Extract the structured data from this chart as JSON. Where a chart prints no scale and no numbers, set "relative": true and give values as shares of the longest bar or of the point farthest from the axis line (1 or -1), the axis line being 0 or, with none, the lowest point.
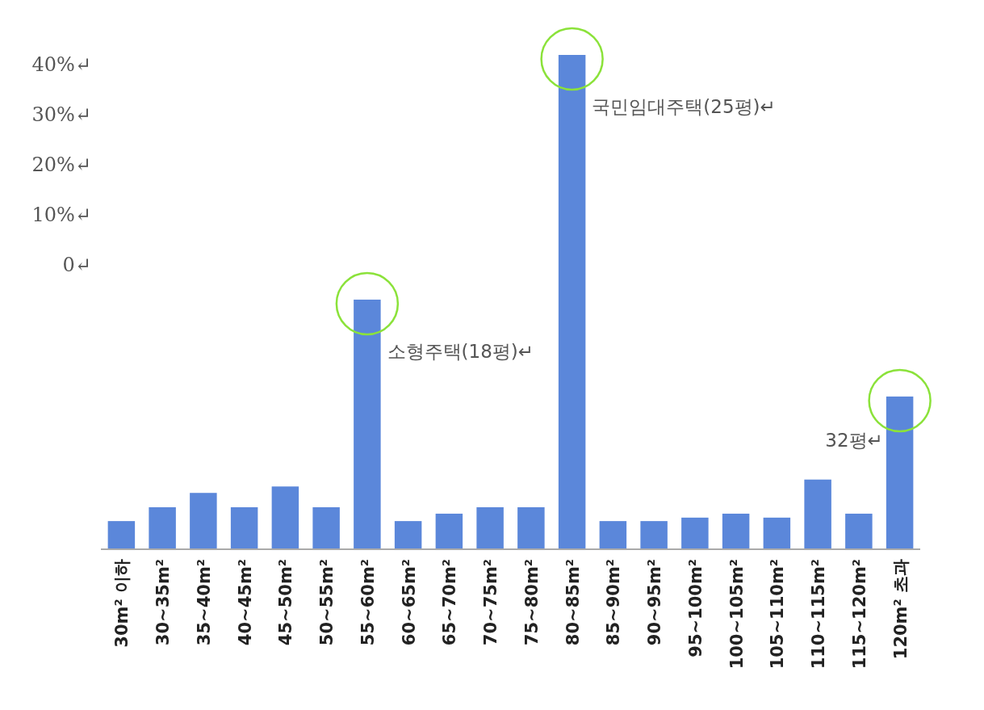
{
  "chart_data": {
    "type": "bar",
    "relative": true,
    "categories": [
      "30m² 이하",
      "30~35m²",
      "35~40m²",
      "40~45m²",
      "45~50m²",
      "50~55m²",
      "55~60m²",
      "60~65m²",
      "65~70m²",
      "70~75m²",
      "75~80m²",
      "80~85m²",
      "85~90m²",
      "90~95m²",
      "95~100m²",
      "100~105m²",
      "105~110m²",
      "110~115m²",
      "115~120m²",
      "120m² 초과"
    ],
    "values": [
      0.057,
      0.085,
      0.114,
      0.085,
      0.127,
      0.085,
      0.505,
      0.057,
      0.072,
      0.085,
      0.085,
      1,
      0.057,
      0.057,
      0.064,
      0.072,
      0.064,
      0.141,
      0.072,
      0.309
    ],
    "color": "#5b87da",
    "annotations": [
      "40%↵",
      "30%↵",
      "20%↵",
      "10%↵",
      "0↵",
      {
        "text": "소형주택(18평)↵",
        "x": "55~60m²",
        "y": 0.505
      },
      {
        "text": "국민임대주택(25평)↵",
        "x": "80~85m²",
        "y": 1
      },
      {
        "text": "32평↵",
        "x": "120m² 초과",
        "y": 0.309
      }
    ]
  }
}
